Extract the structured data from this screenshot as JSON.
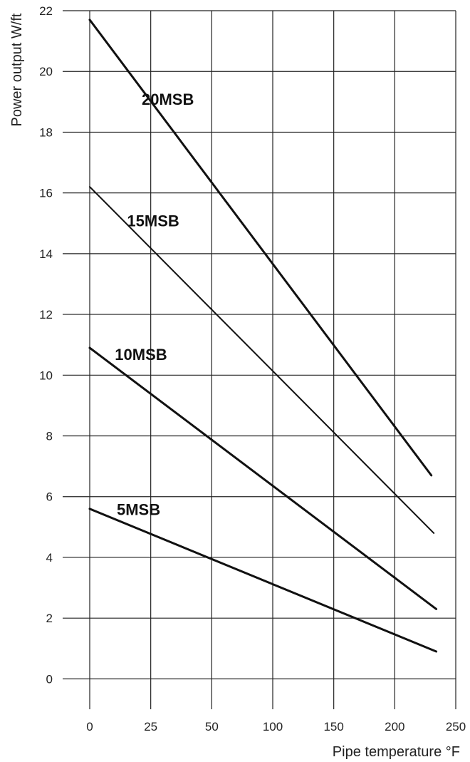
{
  "chart_data": {
    "type": "line",
    "title": "",
    "xlabel": "Pipe temperature °F",
    "ylabel": "Power output W/ft",
    "xlim": [
      0,
      250
    ],
    "ylim": [
      -1,
      22
    ],
    "x_ticks": [
      0,
      25,
      50,
      100,
      150,
      200,
      250
    ],
    "x_tick_labels": [
      "0",
      "25",
      "50",
      "100",
      "150",
      "200",
      "250"
    ],
    "x_tick_positions": [
      0,
      25,
      50,
      75,
      100,
      125,
      150
    ],
    "y_ticks": [
      0,
      2,
      4,
      6,
      8,
      10,
      12,
      14,
      16,
      18,
      20,
      22
    ],
    "y_tick_labels": [
      "0",
      "2",
      "4",
      "6",
      "8",
      "10",
      "12",
      "14",
      "16",
      "18",
      "20",
      "22"
    ],
    "grid": true,
    "legend": "none",
    "series": [
      {
        "name": "20MSB",
        "x": [
          0,
          230
        ],
        "y": [
          21.7,
          6.7
        ]
      },
      {
        "name": "15MSB",
        "x": [
          0,
          232
        ],
        "y": [
          16.2,
          4.8
        ]
      },
      {
        "name": "10MSB",
        "x": [
          0,
          234
        ],
        "y": [
          10.9,
          2.3
        ]
      },
      {
        "name": "5MSB",
        "x": [
          0,
          234
        ],
        "y": [
          5.6,
          0.9
        ]
      }
    ],
    "series_label_anchor": [
      {
        "x": 32,
        "y": 18.9
      },
      {
        "x": 26,
        "y": 14.9
      },
      {
        "x": 21,
        "y": 10.5
      },
      {
        "x": 20,
        "y": 5.4
      }
    ]
  }
}
